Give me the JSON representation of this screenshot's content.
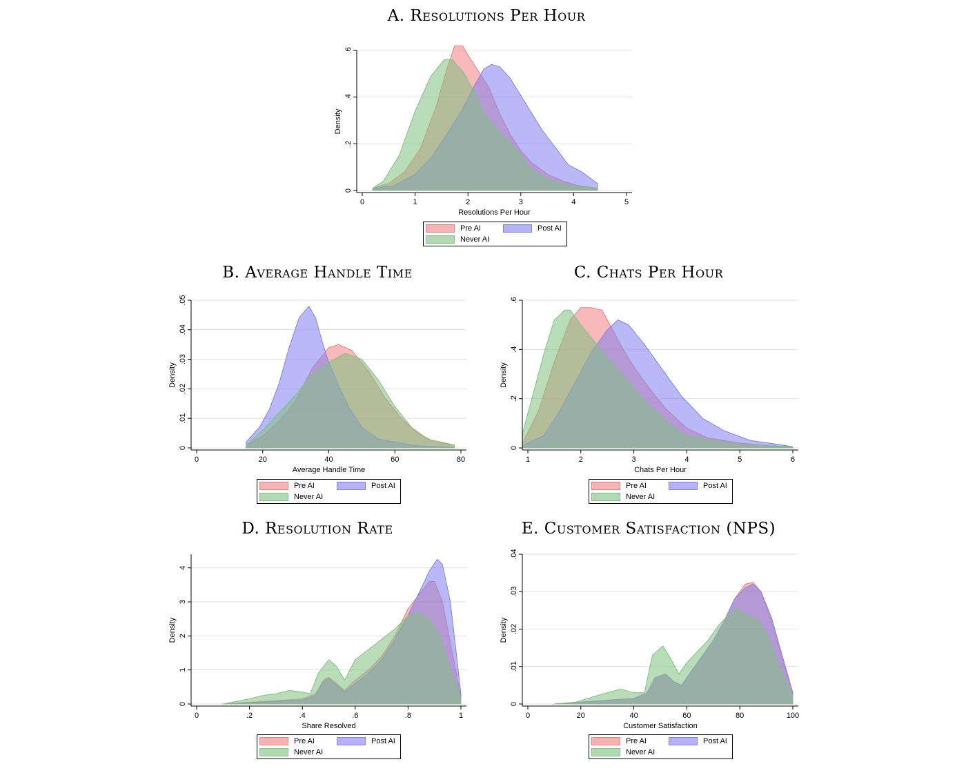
{
  "colors": {
    "pre_ai": "#f08080",
    "post_ai": "#8080f0",
    "never_ai": "#80c080",
    "grid": "#e0e0e0"
  },
  "panels": [
    {
      "id": "A",
      "title": "A. Resolutions Per Hour",
      "legend": [
        "Pre AI",
        "Post AI",
        "Never AI"
      ]
    },
    {
      "id": "B",
      "title": "B. Average Handle Time",
      "legend": [
        "Pre AI",
        "Post AI",
        "Never AI"
      ]
    },
    {
      "id": "C",
      "title": "C. Chats Per Hour",
      "legend": [
        "Pre AI",
        "Post AI",
        "Never AI"
      ]
    },
    {
      "id": "D",
      "title": "D. Resolution Rate",
      "legend": [
        "Pre AI",
        "Post AI",
        "Never AI"
      ]
    },
    {
      "id": "E",
      "title": "E. Customer Satisfaction (NPS)",
      "legend": [
        "Pre AI",
        "Post AI",
        "Never AI"
      ]
    }
  ],
  "chart_data": [
    {
      "type": "area",
      "title": "A. Resolutions Per Hour",
      "xlabel": "Resolutions Per Hour",
      "ylabel": "Density",
      "xlim": [
        0,
        5
      ],
      "ylim": [
        0,
        0.6
      ],
      "xticks": [
        0,
        1,
        2,
        3,
        4,
        5
      ],
      "xtick_labels": [
        "0",
        "1",
        "2",
        "3",
        "4",
        "5"
      ],
      "yticks": [
        0,
        0.2,
        0.4,
        0.6
      ],
      "ytick_labels": [
        "0",
        ".2",
        ".4",
        ".6"
      ],
      "series": [
        {
          "name": "Pre AI",
          "x": [
            0.2,
            0.5,
            0.8,
            1.1,
            1.4,
            1.6,
            1.75,
            1.9,
            2.0,
            2.2,
            2.4,
            2.6,
            2.8,
            3.0,
            3.2,
            3.5,
            3.8,
            4.1,
            4.45
          ],
          "y": [
            0.01,
            0.03,
            0.08,
            0.18,
            0.36,
            0.52,
            0.62,
            0.62,
            0.58,
            0.51,
            0.44,
            0.33,
            0.24,
            0.17,
            0.12,
            0.07,
            0.04,
            0.02,
            0.01
          ]
        },
        {
          "name": "Post AI",
          "x": [
            0.2,
            0.6,
            1.0,
            1.3,
            1.6,
            1.9,
            2.1,
            2.3,
            2.45,
            2.6,
            2.8,
            3.1,
            3.4,
            3.7,
            3.9,
            4.15,
            4.45
          ],
          "y": [
            0.01,
            0.02,
            0.07,
            0.14,
            0.24,
            0.35,
            0.44,
            0.52,
            0.54,
            0.53,
            0.48,
            0.37,
            0.26,
            0.17,
            0.11,
            0.08,
            0.03
          ]
        },
        {
          "name": "Never AI",
          "x": [
            0.2,
            0.4,
            0.7,
            1.0,
            1.3,
            1.55,
            1.7,
            1.9,
            2.1,
            2.3,
            2.6,
            2.9,
            3.2,
            3.6,
            4.0,
            4.45
          ],
          "y": [
            0.01,
            0.04,
            0.15,
            0.34,
            0.49,
            0.56,
            0.56,
            0.51,
            0.43,
            0.33,
            0.25,
            0.18,
            0.09,
            0.04,
            0.02,
            0.01
          ]
        }
      ]
    },
    {
      "type": "area",
      "title": "B. Average Handle Time",
      "xlabel": "Average Handle Time",
      "ylabel": "Density",
      "xlim": [
        0,
        80
      ],
      "ylim": [
        0,
        0.05
      ],
      "xticks": [
        0,
        20,
        40,
        60,
        80
      ],
      "xtick_labels": [
        "0",
        "20",
        "40",
        "60",
        "80"
      ],
      "yticks": [
        0,
        0.01,
        0.02,
        0.03,
        0.04,
        0.05
      ],
      "ytick_labels": [
        "0",
        ".01",
        ".02",
        ".03",
        ".04",
        ".05"
      ],
      "series": [
        {
          "name": "Pre AI",
          "x": [
            15,
            20,
            25,
            30,
            35,
            40,
            43,
            47,
            52,
            57,
            62,
            67,
            72,
            78
          ],
          "y": [
            0.001,
            0.004,
            0.009,
            0.016,
            0.027,
            0.034,
            0.035,
            0.033,
            0.026,
            0.017,
            0.01,
            0.005,
            0.002,
            0.001
          ]
        },
        {
          "name": "Post AI",
          "x": [
            15,
            19,
            22,
            25,
            28,
            31,
            34,
            36,
            38,
            40,
            43,
            46,
            50,
            55,
            60,
            65,
            70,
            78
          ],
          "y": [
            0.002,
            0.007,
            0.013,
            0.022,
            0.034,
            0.044,
            0.048,
            0.044,
            0.036,
            0.029,
            0.021,
            0.014,
            0.007,
            0.003,
            0.002,
            0.001,
            0.0005,
            0.0002
          ]
        },
        {
          "name": "Never AI",
          "x": [
            15,
            20,
            25,
            30,
            35,
            40,
            45,
            50,
            55,
            60,
            65,
            70,
            78
          ],
          "y": [
            0.001,
            0.006,
            0.012,
            0.018,
            0.025,
            0.029,
            0.032,
            0.03,
            0.023,
            0.014,
            0.007,
            0.003,
            0.001
          ]
        }
      ]
    },
    {
      "type": "area",
      "title": "C. Chats Per Hour",
      "xlabel": "Chats Per Hour",
      "ylabel": "Density",
      "xlim": [
        1,
        6
      ],
      "ylim": [
        0,
        0.6
      ],
      "xticks": [
        1,
        2,
        3,
        4,
        5,
        6
      ],
      "xtick_labels": [
        "1",
        "2",
        "3",
        "4",
        "5",
        "6"
      ],
      "yticks": [
        0,
        0.2,
        0.4,
        0.6
      ],
      "ytick_labels": [
        "0",
        ".2",
        ".4",
        ".6"
      ],
      "series": [
        {
          "name": "Pre AI",
          "x": [
            0.9,
            1.2,
            1.5,
            1.8,
            2.0,
            2.2,
            2.4,
            2.6,
            2.8,
            3.0,
            3.3,
            3.6,
            4.0,
            4.4,
            5.0,
            5.5,
            6.0
          ],
          "y": [
            0.02,
            0.15,
            0.35,
            0.52,
            0.57,
            0.57,
            0.56,
            0.48,
            0.4,
            0.33,
            0.24,
            0.16,
            0.08,
            0.04,
            0.02,
            0.01,
            0.005
          ]
        },
        {
          "name": "Post AI",
          "x": [
            0.9,
            1.3,
            1.6,
            1.9,
            2.2,
            2.5,
            2.7,
            2.9,
            3.2,
            3.5,
            3.9,
            4.3,
            4.7,
            5.2,
            5.7,
            6.0
          ],
          "y": [
            0.01,
            0.05,
            0.15,
            0.27,
            0.39,
            0.48,
            0.52,
            0.5,
            0.42,
            0.33,
            0.21,
            0.12,
            0.07,
            0.03,
            0.015,
            0.005
          ]
        },
        {
          "name": "Never AI",
          "x": [
            0.9,
            1.1,
            1.3,
            1.5,
            1.7,
            1.8,
            2.0,
            2.3,
            2.6,
            2.9,
            3.2,
            3.6,
            4.0,
            4.5,
            5.0,
            6.0
          ],
          "y": [
            0.06,
            0.22,
            0.38,
            0.52,
            0.56,
            0.56,
            0.5,
            0.42,
            0.34,
            0.27,
            0.19,
            0.11,
            0.05,
            0.03,
            0.015,
            0.005
          ]
        }
      ]
    },
    {
      "type": "area",
      "title": "D. Resolution Rate",
      "xlabel": "Share Resolved",
      "ylabel": "Density",
      "xlim": [
        0,
        1
      ],
      "ylim": [
        0,
        4.4
      ],
      "xticks": [
        0,
        0.2,
        0.4,
        0.6,
        0.8,
        1
      ],
      "xtick_labels": [
        "0",
        ".2",
        ".4",
        ".6",
        ".8",
        "1"
      ],
      "yticks": [
        0,
        1,
        2,
        3,
        4
      ],
      "ytick_labels": [
        "0",
        "1",
        "2",
        "3",
        "4"
      ],
      "series": [
        {
          "name": "Pre AI",
          "x": [
            0.1,
            0.2,
            0.3,
            0.4,
            0.45,
            0.48,
            0.5,
            0.53,
            0.56,
            0.6,
            0.65,
            0.7,
            0.75,
            0.8,
            0.85,
            0.88,
            0.9,
            0.93,
            0.96,
            1.0
          ],
          "y": [
            0.0,
            0.05,
            0.1,
            0.15,
            0.3,
            0.7,
            0.78,
            0.6,
            0.4,
            0.7,
            1.0,
            1.4,
            2.0,
            2.8,
            3.3,
            3.6,
            3.6,
            3.0,
            1.8,
            0.2
          ]
        },
        {
          "name": "Post AI",
          "x": [
            0.1,
            0.2,
            0.3,
            0.4,
            0.45,
            0.48,
            0.5,
            0.53,
            0.56,
            0.6,
            0.65,
            0.7,
            0.75,
            0.8,
            0.85,
            0.88,
            0.91,
            0.93,
            0.96,
            1.0
          ],
          "y": [
            0.0,
            0.03,
            0.08,
            0.12,
            0.25,
            0.65,
            0.75,
            0.55,
            0.35,
            0.6,
            0.9,
            1.3,
            1.9,
            2.6,
            3.4,
            3.9,
            4.25,
            4.1,
            3.0,
            0.3
          ]
        },
        {
          "name": "Never AI",
          "x": [
            0.1,
            0.2,
            0.25,
            0.3,
            0.35,
            0.4,
            0.43,
            0.46,
            0.5,
            0.53,
            0.56,
            0.6,
            0.65,
            0.7,
            0.75,
            0.8,
            0.84,
            0.88,
            0.92,
            0.96,
            1.0
          ],
          "y": [
            0.0,
            0.15,
            0.25,
            0.3,
            0.4,
            0.35,
            0.3,
            0.9,
            1.3,
            1.1,
            0.7,
            1.3,
            1.6,
            1.9,
            2.2,
            2.6,
            2.7,
            2.5,
            2.0,
            1.0,
            0.2
          ]
        }
      ]
    },
    {
      "type": "area",
      "title": "E. Customer Satisfaction (NPS)",
      "xlabel": "Customer Satisfaction",
      "ylabel": "Density",
      "xlim": [
        0,
        100
      ],
      "ylim": [
        0,
        0.04
      ],
      "xticks": [
        0,
        20,
        40,
        60,
        80,
        100
      ],
      "xtick_labels": [
        "0",
        "20",
        "40",
        "60",
        "80",
        "100"
      ],
      "yticks": [
        0,
        0.01,
        0.02,
        0.03,
        0.04
      ],
      "ytick_labels": [
        "0",
        ".01",
        ".02",
        ".03",
        ".04"
      ],
      "series": [
        {
          "name": "Pre AI",
          "x": [
            10,
            20,
            30,
            40,
            45,
            48,
            52,
            55,
            58,
            62,
            66,
            70,
            74,
            78,
            82,
            85,
            88,
            92,
            96,
            100
          ],
          "y": [
            0.0,
            0.0005,
            0.001,
            0.0015,
            0.003,
            0.007,
            0.008,
            0.006,
            0.005,
            0.009,
            0.013,
            0.017,
            0.022,
            0.028,
            0.032,
            0.0325,
            0.03,
            0.022,
            0.012,
            0.003
          ]
        },
        {
          "name": "Post AI",
          "x": [
            10,
            20,
            30,
            40,
            45,
            48,
            52,
            55,
            58,
            62,
            66,
            70,
            74,
            78,
            82,
            85,
            88,
            92,
            96,
            100
          ],
          "y": [
            0.0,
            0.0005,
            0.001,
            0.0015,
            0.003,
            0.007,
            0.008,
            0.006,
            0.005,
            0.009,
            0.013,
            0.017,
            0.022,
            0.028,
            0.031,
            0.032,
            0.03,
            0.023,
            0.013,
            0.003
          ]
        },
        {
          "name": "Never AI",
          "x": [
            10,
            18,
            25,
            30,
            35,
            40,
            44,
            47,
            51,
            54,
            57,
            60,
            64,
            68,
            72,
            76,
            79,
            82,
            86,
            90,
            95,
            100
          ],
          "y": [
            0.0,
            0.0005,
            0.002,
            0.003,
            0.004,
            0.003,
            0.003,
            0.013,
            0.0155,
            0.012,
            0.008,
            0.011,
            0.014,
            0.017,
            0.021,
            0.024,
            0.0255,
            0.024,
            0.023,
            0.019,
            0.01,
            0.002
          ]
        }
      ]
    }
  ]
}
